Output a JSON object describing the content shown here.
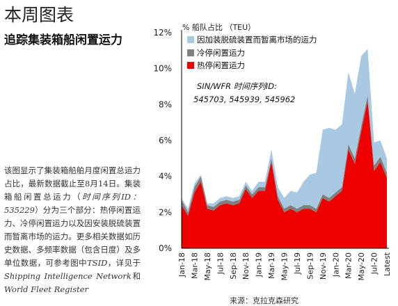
{
  "page": {
    "heading": "本周图表",
    "subtitle": "追踪集装箱船闲置运力",
    "desc": {
      "p1": "该图显示了集装箱船舶月度闲置总运力占比，最新数据截止至8月14日。集装箱船闲置总运力（",
      "series_code": "时间序列ID：535229",
      "p2": "）分为三个部分：热停闲置运力、冷停闲置运力以及因安装脱硫装置而暂离市场的运力。更多相关数据如历史数据、多频率数据（包含日度）及多单位数据，可参考图中",
      "tsid": "TSID",
      "p3": "，详见于",
      "ref1": "Shipping Intelligence Network",
      "and": "和",
      "ref2": "World Fleet Register"
    },
    "source": "来源：克拉克森研究"
  },
  "colors": {
    "scrubber": "#a9c8e2",
    "cold": "#808080",
    "hot": "#ee0000"
  },
  "chart_data": {
    "type": "area",
    "ylabel": "% 船队占比 （TEU）",
    "ylim": [
      0,
      12
    ],
    "yticks": [
      0,
      2,
      4,
      6,
      8,
      10,
      12
    ],
    "ytick_labels": [
      "0%",
      "2%",
      "4%",
      "6%",
      "8%",
      "10%",
      "12%"
    ],
    "xtick_labels": [
      "Jan-18",
      "Mar-18",
      "May-18",
      "Jul-18",
      "Sep-18",
      "Nov-18",
      "Jan-19",
      "Mar-19",
      "May-19",
      "Jul-19",
      "Sep-19",
      "Nov-19",
      "Jan-20",
      "Mar-20",
      "May-20",
      "Jul-20",
      "Latest"
    ],
    "annotation": {
      "line1": "SIN/WFR 时间序列ID:",
      "line2": "545703, 545939, 545962"
    },
    "x": [
      "Jan-18",
      "Feb-18",
      "Mar-18",
      "Apr-18",
      "May-18",
      "Jun-18",
      "Jul-18",
      "Aug-18",
      "Sep-18",
      "Oct-18",
      "Nov-18",
      "Dec-18",
      "Jan-19",
      "Feb-19",
      "Mar-19",
      "Apr-19",
      "May-19",
      "Jun-19",
      "Jul-19",
      "Aug-19",
      "Sep-19",
      "Oct-19",
      "Nov-19",
      "Dec-19",
      "Jan-20",
      "Feb-20",
      "Mar-20",
      "Apr-20",
      "May-20",
      "Jun-20",
      "Jul-20",
      "Aug-20",
      "Latest"
    ],
    "series": [
      {
        "name": "因加装脱硫装置而暂离市场的运力",
        "color": "#a9c8e2",
        "values": [
          0.1,
          0.2,
          0.2,
          0.1,
          0.1,
          0.2,
          0.2,
          0.2,
          0.2,
          0.2,
          0.2,
          0.2,
          0.3,
          0.3,
          0.5,
          0.5,
          0.6,
          0.8,
          0.9,
          1.3,
          1.7,
          2.0,
          3.6,
          3.9,
          3.5,
          3.5,
          4.0,
          3.6,
          3.9,
          2.6,
          1.3,
          0.9,
          0.8
        ]
      },
      {
        "name": "冷停闲置运力",
        "color": "#808080",
        "values": [
          0.3,
          0.2,
          0.3,
          0.3,
          0.2,
          0.2,
          0.2,
          0.2,
          0.2,
          0.2,
          0.2,
          0.2,
          0.2,
          0.2,
          0.2,
          0.2,
          0.2,
          0.2,
          0.2,
          0.2,
          0.2,
          0.2,
          0.2,
          0.2,
          0.2,
          0.2,
          0.3,
          0.3,
          0.3,
          0.3,
          0.3,
          0.3,
          0.3
        ]
      },
      {
        "name": "热停闲置运力",
        "color": "#ee0000",
        "values": [
          2.4,
          1.8,
          3.1,
          3.7,
          2.2,
          2.1,
          2.4,
          2.5,
          2.4,
          2.5,
          3.3,
          2.8,
          3.2,
          3.2,
          4.8,
          2.7,
          2.0,
          2.2,
          2.0,
          2.2,
          2.2,
          2.0,
          2.8,
          2.6,
          2.9,
          3.2,
          5.5,
          4.7,
          6.5,
          8.2,
          4.3,
          4.8,
          3.9
        ]
      }
    ]
  }
}
